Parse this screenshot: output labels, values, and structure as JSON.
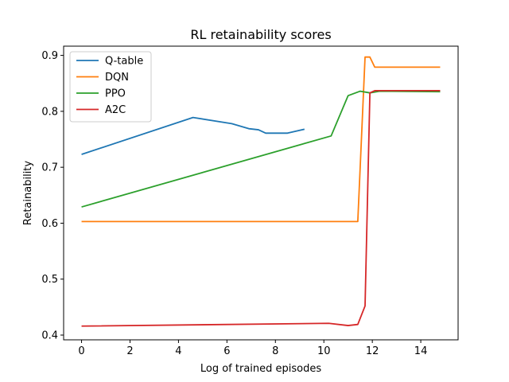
{
  "chart_data": {
    "type": "line",
    "title": "RL retainability scores",
    "xlabel": "Log of trained episodes",
    "ylabel": "Retainability",
    "xlim": [
      -0.74,
      15.54
    ],
    "ylim": [
      0.3915,
      0.9165
    ],
    "xticks": [
      0,
      2,
      4,
      6,
      8,
      10,
      12,
      14
    ],
    "yticks": [
      0.4,
      0.5,
      0.6,
      0.7,
      0.8,
      0.9
    ],
    "grid": false,
    "legend": "top-left",
    "series": [
      {
        "name": "Q-table",
        "color": "#1f77b4",
        "x": [
          0,
          4.6,
          6.2,
          6.9,
          7.3,
          7.6,
          8.0,
          8.5,
          9.2
        ],
        "y": [
          0.723,
          0.789,
          0.778,
          0.769,
          0.767,
          0.761,
          0.761,
          0.761,
          0.768
        ]
      },
      {
        "name": "DQN",
        "color": "#ff7f0e",
        "x": [
          0,
          11.4,
          11.7,
          11.9,
          12.1,
          13.0,
          14.8
        ],
        "y": [
          0.603,
          0.603,
          0.897,
          0.897,
          0.879,
          0.879,
          0.879
        ]
      },
      {
        "name": "PPO",
        "color": "#2ca02c",
        "x": [
          0,
          10.3,
          11.0,
          11.5,
          11.9,
          12.3,
          14.8
        ],
        "y": [
          0.629,
          0.756,
          0.828,
          0.836,
          0.833,
          0.836,
          0.835
        ]
      },
      {
        "name": "A2C",
        "color": "#d62728",
        "x": [
          0,
          10.2,
          11.0,
          11.4,
          11.7,
          11.9,
          12.1,
          14.8
        ],
        "y": [
          0.416,
          0.421,
          0.417,
          0.419,
          0.452,
          0.833,
          0.837,
          0.837
        ]
      }
    ]
  }
}
